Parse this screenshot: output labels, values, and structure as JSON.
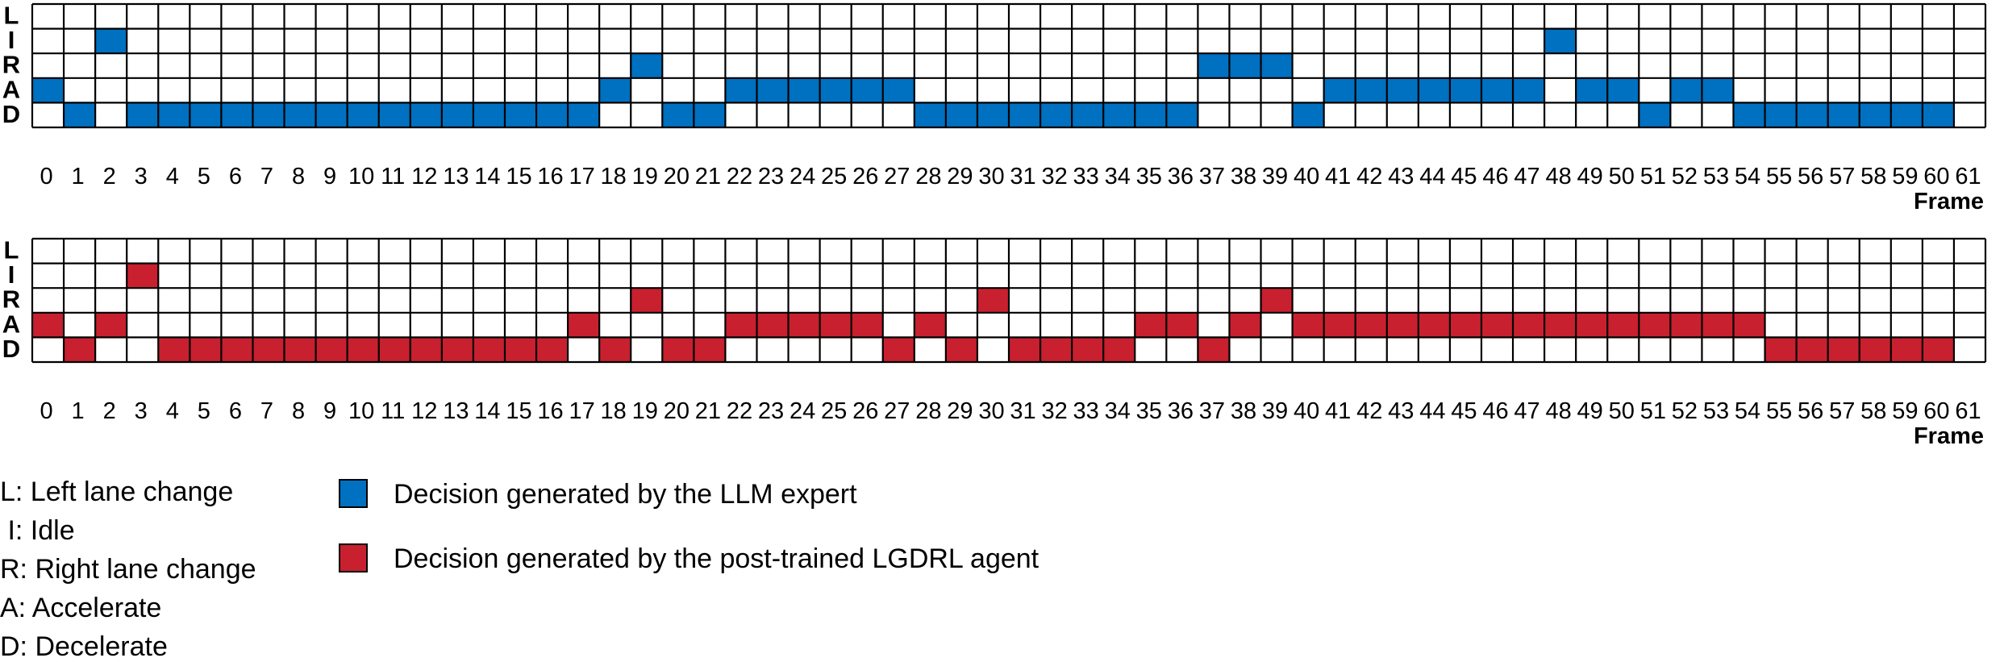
{
  "chart_data": [
    {
      "type": "heatmap",
      "series_name": "Decision generated by the LLM expert",
      "color": "#0070C0",
      "rows": [
        "L",
        "I",
        "R",
        "A",
        "D"
      ],
      "frames": [
        0,
        1,
        2,
        3,
        4,
        5,
        6,
        7,
        8,
        9,
        10,
        11,
        12,
        13,
        14,
        15,
        16,
        17,
        18,
        19,
        20,
        21,
        22,
        23,
        24,
        25,
        26,
        27,
        28,
        29,
        30,
        31,
        32,
        33,
        34,
        35,
        36,
        37,
        38,
        39,
        40,
        41,
        42,
        43,
        44,
        45,
        46,
        47,
        48,
        49,
        50,
        51,
        52,
        53,
        54,
        55,
        56,
        57,
        58,
        59,
        60,
        61
      ],
      "decisions": [
        "A",
        "D",
        "I",
        "D",
        "D",
        "D",
        "D",
        "D",
        "D",
        "D",
        "D",
        "D",
        "D",
        "D",
        "D",
        "D",
        "D",
        "D",
        "A",
        "R",
        "D",
        "D",
        "A",
        "A",
        "A",
        "A",
        "A",
        "A",
        "D",
        "D",
        "D",
        "D",
        "D",
        "D",
        "D",
        "D",
        "D",
        "R",
        "R",
        "R",
        "D",
        "A",
        "A",
        "A",
        "A",
        "A",
        "A",
        "A",
        "I",
        "A",
        "A",
        "D",
        "A",
        "A",
        "D",
        "D",
        "D",
        "D",
        "D",
        "D",
        "D",
        ""
      ],
      "xlabel": "Frame"
    },
    {
      "type": "heatmap",
      "series_name": "Decision generated by the post-trained LGDRL agent",
      "color": "#C8202F",
      "rows": [
        "L",
        "I",
        "R",
        "A",
        "D"
      ],
      "frames": [
        0,
        1,
        2,
        3,
        4,
        5,
        6,
        7,
        8,
        9,
        10,
        11,
        12,
        13,
        14,
        15,
        16,
        17,
        18,
        19,
        20,
        21,
        22,
        23,
        24,
        25,
        26,
        27,
        28,
        29,
        30,
        31,
        32,
        33,
        34,
        35,
        36,
        37,
        38,
        39,
        40,
        41,
        42,
        43,
        44,
        45,
        46,
        47,
        48,
        49,
        50,
        51,
        52,
        53,
        54,
        55,
        56,
        57,
        58,
        59,
        60,
        61
      ],
      "decisions": [
        "A",
        "D",
        "A",
        "I",
        "D",
        "D",
        "D",
        "D",
        "D",
        "D",
        "D",
        "D",
        "D",
        "D",
        "D",
        "D",
        "D",
        "A",
        "D",
        "R",
        "D",
        "D",
        "A",
        "A",
        "A",
        "A",
        "A",
        "D",
        "A",
        "D",
        "R",
        "D",
        "D",
        "D",
        "D",
        "A",
        "A",
        "D",
        "A",
        "R",
        "A",
        "A",
        "A",
        "A",
        "A",
        "A",
        "A",
        "A",
        "A",
        "A",
        "A",
        "A",
        "A",
        "A",
        "A",
        "D",
        "D",
        "D",
        "D",
        "D",
        "D",
        ""
      ],
      "xlabel": "Frame"
    }
  ],
  "legend": {
    "abbreviations": [
      "L: Left lane change",
      " I: Idle",
      "R: Right lane change",
      "A: Accelerate",
      "D: Decelerate"
    ],
    "series": [
      {
        "label": "Decision generated by the LLM expert",
        "color": "#0070C0"
      },
      {
        "label": "Decision generated by the post-trained LGDRL agent",
        "color": "#C8202F"
      }
    ]
  }
}
